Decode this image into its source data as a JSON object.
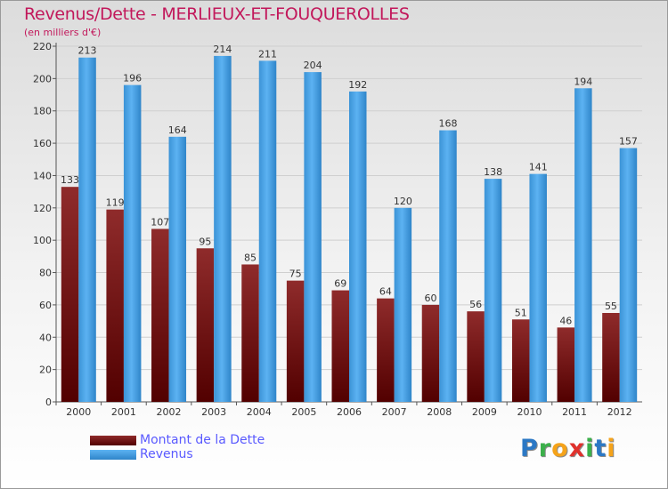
{
  "chart_data": {
    "type": "bar",
    "title": "Revenus/Dette - MERLIEUX-ET-FOUQUEROLLES",
    "subtitle": "(en milliers d'€)",
    "categories": [
      "2000",
      "2001",
      "2002",
      "2003",
      "2004",
      "2005",
      "2006",
      "2007",
      "2008",
      "2009",
      "2010",
      "2011",
      "2012"
    ],
    "series": [
      {
        "name": "Montant de la Dette",
        "color": "#7a1a1a",
        "values": [
          133,
          119,
          107,
          95,
          85,
          75,
          69,
          64,
          60,
          56,
          51,
          46,
          55
        ]
      },
      {
        "name": "Revenus",
        "color": "#3f9be0",
        "values": [
          213,
          196,
          164,
          214,
          211,
          204,
          192,
          120,
          168,
          138,
          141,
          194,
          157
        ]
      }
    ],
    "ylim": [
      0,
      220
    ],
    "yticks": [
      0,
      20,
      40,
      60,
      80,
      100,
      120,
      140,
      160,
      180,
      200,
      220
    ],
    "grid": true,
    "legend": "bottom-left"
  },
  "logo": {
    "letters": [
      {
        "ch": "P",
        "color": "#2b78c5"
      },
      {
        "ch": "r",
        "color": "#3bb04a"
      },
      {
        "ch": "o",
        "color": "#f5a31a"
      },
      {
        "ch": "x",
        "color": "#e0312c"
      },
      {
        "ch": "i",
        "color": "#3bb04a"
      },
      {
        "ch": "t",
        "color": "#2b78c5"
      },
      {
        "ch": "i",
        "color": "#f5a31a"
      }
    ]
  }
}
